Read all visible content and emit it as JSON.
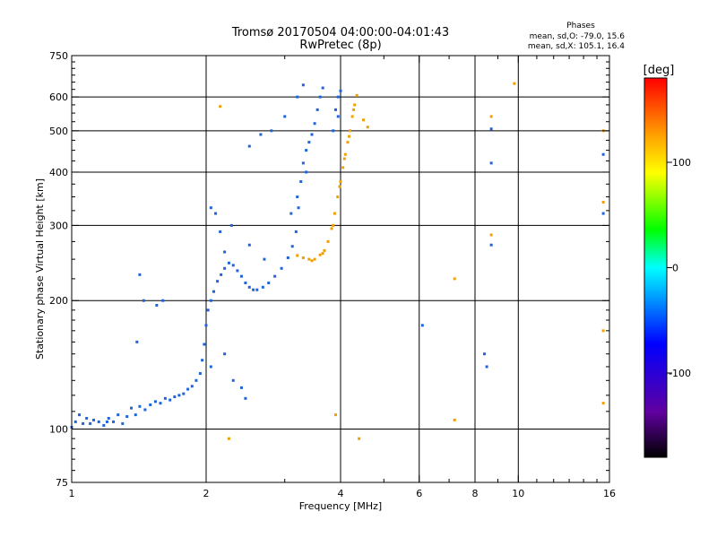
{
  "chart_data": {
    "type": "scatter",
    "title": "Tromsø 20170504 04:00:00-04:01:43",
    "subtitle": "RwPretec (8p)",
    "xlabel": "Frequency [MHz]",
    "ylabel": "Stationary phase Virtual Height [km]",
    "x_scale": "log",
    "y_scale": "log",
    "xlim": [
      1,
      16
    ],
    "ylim": [
      75,
      750
    ],
    "x_ticks": [
      1,
      2,
      4,
      6,
      8,
      10,
      16
    ],
    "y_ticks": [
      75,
      100,
      200,
      300,
      400,
      500,
      600,
      750
    ],
    "grid": true,
    "phase_stats": {
      "heading": "Phases",
      "line_o": "mean, sd,O: -79.0, 15.6",
      "line_x": "mean, sd,X: 105.1, 16.4"
    },
    "colorbar": {
      "label": "[deg]",
      "range": [
        -180,
        180
      ],
      "ticks": [
        -100,
        0,
        100
      ],
      "colors": [
        "#000000",
        "#6000a0",
        "#0000ff",
        "#00c0ff",
        "#00ffff",
        "#00ff00",
        "#ffff00",
        "#ffa000",
        "#ff0000"
      ]
    },
    "series": [
      {
        "name": "O",
        "phase_deg": -79,
        "color": "#1e64dc",
        "points": [
          [
            1.0,
            101
          ],
          [
            1.02,
            104
          ],
          [
            1.04,
            108
          ],
          [
            1.06,
            103
          ],
          [
            1.08,
            106
          ],
          [
            1.1,
            103
          ],
          [
            1.12,
            105
          ],
          [
            1.15,
            104
          ],
          [
            1.18,
            102
          ],
          [
            1.21,
            106
          ],
          [
            1.24,
            104
          ],
          [
            1.27,
            108
          ],
          [
            1.3,
            103
          ],
          [
            1.33,
            107
          ],
          [
            1.36,
            112
          ],
          [
            1.39,
            108
          ],
          [
            1.42,
            113
          ],
          [
            1.46,
            111
          ],
          [
            1.5,
            114
          ],
          [
            1.54,
            116
          ],
          [
            1.58,
            115
          ],
          [
            1.62,
            118
          ],
          [
            1.66,
            117
          ],
          [
            1.7,
            119
          ],
          [
            1.74,
            120
          ],
          [
            1.78,
            121
          ],
          [
            1.82,
            124
          ],
          [
            1.86,
            126
          ],
          [
            1.9,
            130
          ],
          [
            1.94,
            135
          ],
          [
            1.96,
            145
          ],
          [
            1.98,
            158
          ],
          [
            2.0,
            175
          ],
          [
            2.02,
            190
          ],
          [
            2.05,
            200
          ],
          [
            2.08,
            210
          ],
          [
            2.12,
            222
          ],
          [
            2.16,
            230
          ],
          [
            2.2,
            238
          ],
          [
            2.25,
            245
          ],
          [
            2.3,
            242
          ],
          [
            2.35,
            235
          ],
          [
            2.4,
            228
          ],
          [
            2.45,
            220
          ],
          [
            2.5,
            215
          ],
          [
            2.55,
            212
          ],
          [
            2.6,
            212
          ],
          [
            2.68,
            215
          ],
          [
            2.76,
            220
          ],
          [
            2.85,
            228
          ],
          [
            2.95,
            238
          ],
          [
            3.05,
            252
          ],
          [
            3.12,
            268
          ],
          [
            3.18,
            290
          ],
          [
            3.22,
            330
          ],
          [
            3.26,
            380
          ],
          [
            3.3,
            420
          ],
          [
            3.35,
            450
          ],
          [
            3.4,
            470
          ],
          [
            3.45,
            490
          ],
          [
            3.5,
            520
          ],
          [
            3.55,
            560
          ],
          [
            3.6,
            600
          ],
          [
            3.65,
            630
          ],
          [
            1.4,
            160
          ],
          [
            1.45,
            200
          ],
          [
            1.55,
            195
          ],
          [
            1.6,
            200
          ],
          [
            1.42,
            230
          ],
          [
            2.1,
            320
          ],
          [
            2.15,
            290
          ],
          [
            2.2,
            260
          ],
          [
            2.28,
            300
          ],
          [
            2.05,
            330
          ],
          [
            2.5,
            270
          ],
          [
            2.7,
            250
          ],
          [
            3.1,
            320
          ],
          [
            3.2,
            350
          ],
          [
            3.35,
            400
          ],
          [
            3.85,
            500
          ],
          [
            3.9,
            560
          ],
          [
            3.95,
            600
          ],
          [
            4.0,
            620
          ],
          [
            3.95,
            540
          ],
          [
            2.2,
            150
          ],
          [
            2.3,
            130
          ],
          [
            2.4,
            125
          ],
          [
            2.05,
            140
          ],
          [
            2.5,
            460
          ],
          [
            2.65,
            490
          ],
          [
            2.8,
            500
          ],
          [
            3.0,
            540
          ],
          [
            3.2,
            600
          ],
          [
            3.3,
            640
          ],
          [
            8.7,
            505
          ],
          [
            8.7,
            420
          ],
          [
            8.7,
            270
          ],
          [
            15.5,
            440
          ],
          [
            15.5,
            320
          ],
          [
            8.4,
            150
          ],
          [
            8.5,
            140
          ],
          [
            6.1,
            175
          ],
          [
            2.45,
            118
          ],
          [
            1.2,
            104
          ]
        ]
      },
      {
        "name": "X",
        "phase_deg": 105,
        "color": "#f0a000",
        "points": [
          [
            3.2,
            255
          ],
          [
            3.3,
            252
          ],
          [
            3.4,
            250
          ],
          [
            3.5,
            250
          ],
          [
            3.6,
            256
          ],
          [
            3.68,
            262
          ],
          [
            3.75,
            275
          ],
          [
            3.82,
            295
          ],
          [
            3.88,
            320
          ],
          [
            3.94,
            350
          ],
          [
            4.0,
            380
          ],
          [
            4.05,
            410
          ],
          [
            4.1,
            440
          ],
          [
            4.15,
            470
          ],
          [
            4.2,
            500
          ],
          [
            4.25,
            540
          ],
          [
            4.3,
            575
          ],
          [
            4.35,
            605
          ],
          [
            3.45,
            248
          ],
          [
            3.65,
            258
          ],
          [
            3.85,
            300
          ],
          [
            3.98,
            370
          ],
          [
            4.08,
            430
          ],
          [
            4.18,
            485
          ],
          [
            4.28,
            560
          ],
          [
            2.15,
            570
          ],
          [
            2.25,
            95
          ],
          [
            3.9,
            108
          ],
          [
            4.4,
            95
          ],
          [
            7.2,
            225
          ],
          [
            7.2,
            105
          ],
          [
            9.8,
            645
          ],
          [
            15.5,
            500
          ],
          [
            15.5,
            340
          ],
          [
            15.5,
            170
          ],
          [
            15.5,
            115
          ],
          [
            8.7,
            285
          ],
          [
            8.7,
            540
          ],
          [
            4.6,
            510
          ],
          [
            4.5,
            530
          ]
        ]
      }
    ]
  }
}
